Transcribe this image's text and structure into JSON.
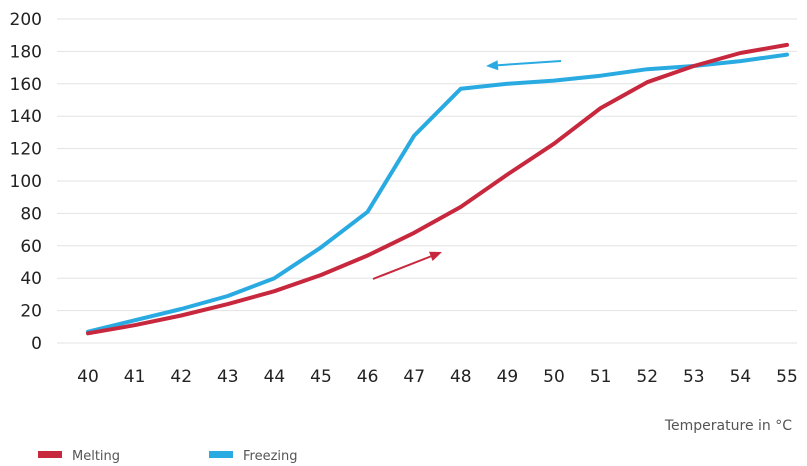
{
  "chart_data": {
    "type": "line",
    "title": "",
    "xlabel": "Temperature in °C",
    "ylabel": "",
    "x": [
      40,
      41,
      42,
      43,
      44,
      45,
      46,
      47,
      48,
      49,
      50,
      51,
      52,
      53,
      54,
      55
    ],
    "ylim": [
      0,
      200
    ],
    "yticks": [
      0,
      20,
      40,
      60,
      80,
      100,
      120,
      140,
      160,
      180,
      200
    ],
    "grid": true,
    "legend_position": "bottom-left",
    "series": [
      {
        "name": "Melting",
        "color": "#C8283D",
        "values": [
          6,
          11,
          17,
          24,
          32,
          42,
          54,
          68,
          84,
          104,
          123,
          145,
          161,
          171,
          179,
          184
        ]
      },
      {
        "name": "Freezing",
        "color": "#29ABE2",
        "values": [
          7,
          14,
          21,
          29,
          40,
          59,
          81,
          128,
          157,
          160,
          162,
          165,
          169,
          171,
          174,
          178
        ]
      }
    ],
    "annotations": [
      {
        "type": "arrow",
        "series": "Freezing",
        "direction": "left",
        "color": "#29ABE2"
      },
      {
        "type": "arrow",
        "series": "Melting",
        "direction": "right",
        "color": "#C8283D"
      }
    ]
  }
}
